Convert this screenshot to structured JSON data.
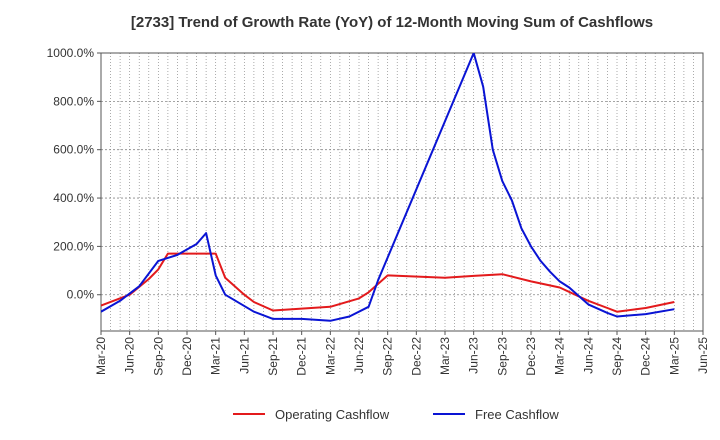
{
  "chart_data": {
    "type": "line",
    "title": "[2733]  Trend of Growth Rate (YoY) of 12-Month Moving Sum of Cashflows",
    "xlabel": "",
    "ylabel": "",
    "ylim": [
      -150,
      1000
    ],
    "y_ticks": [
      {
        "value": 0,
        "label": "0.0%"
      },
      {
        "value": 200,
        "label": "200.0%"
      },
      {
        "value": 400,
        "label": "400.0%"
      },
      {
        "value": 600,
        "label": "600.0%"
      },
      {
        "value": 800,
        "label": "800.0%"
      },
      {
        "value": 1000,
        "label": "1000.0%"
      }
    ],
    "x_tick_labels": [
      "Mar-20",
      "Jun-20",
      "Sep-20",
      "Dec-20",
      "Mar-21",
      "Jun-21",
      "Sep-21",
      "Dec-21",
      "Mar-22",
      "Jun-22",
      "Sep-22",
      "Dec-22",
      "Mar-23",
      "Jun-23",
      "Sep-23",
      "Dec-23",
      "Mar-24",
      "Jun-24",
      "Sep-24",
      "Dec-24",
      "Mar-25",
      "Jun-25"
    ],
    "grid": true,
    "legend_position": "bottom",
    "series": [
      {
        "name": "Operating Cashflow",
        "color": "#e31a1c",
        "points": [
          [
            "Mar-20",
            -45
          ],
          [
            "Jun-20",
            0
          ],
          [
            "Aug-20",
            65
          ],
          [
            "Sep-20",
            105
          ],
          [
            "Oct-20",
            170
          ],
          [
            "Jan-21",
            170
          ],
          [
            "Mar-21",
            170
          ],
          [
            "Apr-21",
            70
          ],
          [
            "Jun-21",
            0
          ],
          [
            "Jul-21",
            -30
          ],
          [
            "Sep-21",
            -65
          ],
          [
            "Mar-22",
            -50
          ],
          [
            "Jun-22",
            -15
          ],
          [
            "Jul-22",
            10
          ],
          [
            "Sep-22",
            80
          ],
          [
            "Mar-23",
            70
          ],
          [
            "Jun-23",
            78
          ],
          [
            "Sep-23",
            85
          ],
          [
            "Dec-23",
            55
          ],
          [
            "Mar-24",
            30
          ],
          [
            "Jun-24",
            -25
          ],
          [
            "Aug-24",
            -55
          ],
          [
            "Sep-24",
            -70
          ],
          [
            "Dec-24",
            -55
          ],
          [
            "Mar-25",
            -30
          ]
        ]
      },
      {
        "name": "Free Cashflow",
        "color": "#0a14d4",
        "points": [
          [
            "Mar-20",
            -70
          ],
          [
            "May-20",
            -25
          ],
          [
            "Jul-20",
            35
          ],
          [
            "Sep-20",
            140
          ],
          [
            "Nov-20",
            165
          ],
          [
            "Jan-21",
            210
          ],
          [
            "Feb-21",
            255
          ],
          [
            "Mar-21",
            80
          ],
          [
            "Apr-21",
            0
          ],
          [
            "Jul-21",
            -70
          ],
          [
            "Sep-21",
            -100
          ],
          [
            "Dec-21",
            -100
          ],
          [
            "Mar-22",
            -108
          ],
          [
            "May-22",
            -90
          ],
          [
            "Jul-22",
            -50
          ],
          [
            "Aug-22",
            60
          ],
          [
            "Jun-23",
            1000
          ],
          [
            "Jul-23",
            860
          ],
          [
            "Aug-23",
            600
          ],
          [
            "Sep-23",
            470
          ],
          [
            "Oct-23",
            390
          ],
          [
            "Nov-23",
            275
          ],
          [
            "Dec-23",
            200
          ],
          [
            "Jan-24",
            140
          ],
          [
            "Feb-24",
            95
          ],
          [
            "Mar-24",
            55
          ],
          [
            "Apr-24",
            30
          ],
          [
            "Jun-24",
            -40
          ],
          [
            "Aug-24",
            -75
          ],
          [
            "Sep-24",
            -90
          ],
          [
            "Dec-24",
            -80
          ],
          [
            "Mar-25",
            -60
          ]
        ]
      }
    ]
  }
}
